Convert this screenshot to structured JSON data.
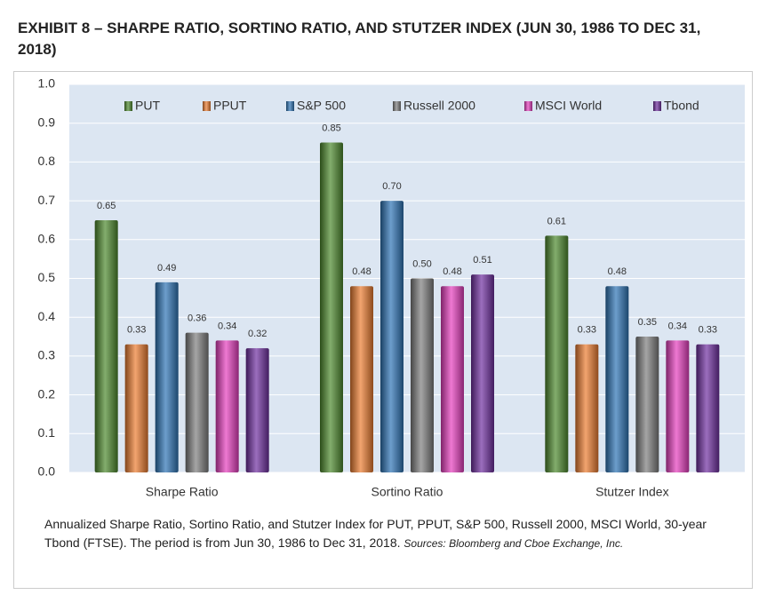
{
  "chart_data": {
    "type": "bar",
    "title": "EXHIBIT 8 – SHARPE RATIO, SORTINO RATIO, AND STUTZER INDEX (JUN 30, 1986 TO DEC 31, 2018)",
    "caption": "Annualized Sharpe Ratio, Sortino Ratio, and Stutzer Index for PUT,  PPUT, S&P 500, Russell 2000, MSCI World, 30-year Tbond (FTSE). The period is from Jun 30, 1986 to Dec 31, 2018.",
    "source": "Sources: Bloomberg and Cboe Exchange, Inc.",
    "categories": [
      "Sharpe Ratio",
      "Sortino Ratio",
      "Stutzer Index"
    ],
    "series": [
      {
        "name": "PUT",
        "color": "#4e8a2e",
        "values": [
          0.65,
          0.85,
          0.61
        ],
        "value_labels": [
          "0.65",
          "0.85",
          "0.61"
        ]
      },
      {
        "name": "PPUT",
        "color": "#ed7d31",
        "values": [
          0.33,
          0.48,
          0.33
        ],
        "value_labels": [
          "0.33",
          "0.48",
          "0.33"
        ]
      },
      {
        "name": "S&P 500",
        "color": "#2e75b6",
        "values": [
          0.49,
          0.7,
          0.48
        ],
        "value_labels": [
          "0.49",
          "0.70",
          "0.48"
        ]
      },
      {
        "name": "Russell 2000",
        "color": "#7f7f7f",
        "values": [
          0.36,
          0.5,
          0.35
        ],
        "value_labels": [
          "0.36",
          "0.50",
          "0.35"
        ]
      },
      {
        "name": "MSCI World",
        "color": "#e63fbf",
        "values": [
          0.34,
          0.48,
          0.34
        ],
        "value_labels": [
          "0.34",
          "0.48",
          "0.34"
        ]
      },
      {
        "name": "Tbond",
        "color": "#7030a0",
        "values": [
          0.32,
          0.51,
          0.33
        ],
        "value_labels": [
          "0.32",
          "0.51",
          "0.33"
        ]
      }
    ],
    "ylim": [
      0,
      1
    ],
    "yticks": [
      {
        "value": 0,
        "label": "0.0"
      },
      0.1,
      0.2,
      0.3,
      0.4,
      0.5,
      0.6,
      0.7,
      0.8,
      0.9,
      {
        "value": 1,
        "label": "1.0"
      }
    ],
    "grid": true,
    "legend": "top"
  }
}
